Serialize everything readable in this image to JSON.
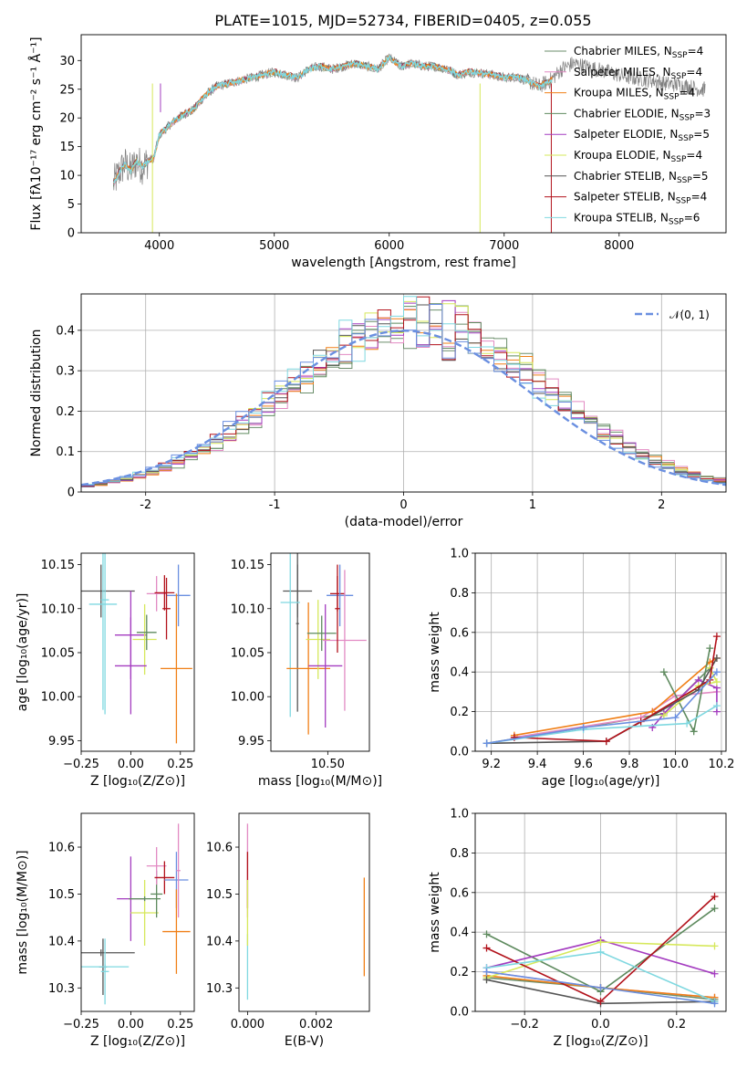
{
  "figure_title": "PLATE=1015, MJD=52734, FIBERID=0405, z=0.055",
  "palette": [
    "#6b8e6b",
    "#e28ac3",
    "#f07f16",
    "#5e8a5e",
    "#a43cc0",
    "#d6e85b",
    "#555555",
    "#b2121b",
    "#7fd8e0",
    "#6a8fe0"
  ],
  "chart_data": [
    {
      "type": "line",
      "title": "PLATE=1015, MJD=52734, FIBERID=0405, z=0.055",
      "xlabel": "wavelength [Angstrom, rest frame]",
      "ylabel": "Flux [fλ10⁻¹⁷ erg cm⁻² s⁻¹ Å⁻¹]",
      "xlim": [
        3320,
        8930
      ],
      "ylim": [
        0,
        34.5
      ],
      "xticks": [
        4000,
        5000,
        6000,
        7000,
        8000
      ],
      "yticks": [
        0,
        5,
        10,
        15,
        20,
        25,
        30
      ],
      "legend_position": "right",
      "legend": [
        {
          "label": "Chabrier MILES, N",
          "sub": "SSP",
          "tail": "=4",
          "color": "#6b8e6b"
        },
        {
          "label": "Salpeter MILES, N",
          "sub": "SSP",
          "tail": "=4",
          "color": "#e28ac3"
        },
        {
          "label": "Kroupa MILES, N",
          "sub": "SSP",
          "tail": "=4",
          "color": "#f07f16"
        },
        {
          "label": "Chabrier ELODIE, N",
          "sub": "SSP",
          "tail": "=3",
          "color": "#5e8a5e"
        },
        {
          "label": "Salpeter ELODIE, N",
          "sub": "SSP",
          "tail": "=5",
          "color": "#a43cc0"
        },
        {
          "label": "Kroupa ELODIE, N",
          "sub": "SSP",
          "tail": "=4",
          "color": "#d6e85b"
        },
        {
          "label": "Chabrier STELIB, N",
          "sub": "SSP",
          "tail": "=5",
          "color": "#555555"
        },
        {
          "label": "Salpeter STELIB, N",
          "sub": "SSP",
          "tail": "=4",
          "color": "#b2121b"
        },
        {
          "label": "Kroupa STELIB, N",
          "sub": "SSP",
          "tail": "=6",
          "color": "#7fd8e0"
        }
      ],
      "observed_color": "#808080",
      "continuum": {
        "x": [
          3600,
          3650,
          3700,
          3750,
          3800,
          3850,
          3900,
          3950,
          4000,
          4100,
          4200,
          4300,
          4400,
          4500,
          4600,
          4700,
          4800,
          4900,
          5000,
          5100,
          5200,
          5300,
          5400,
          5500,
          5600,
          5700,
          5800,
          5900,
          6000,
          6100,
          6200,
          6300,
          6400,
          6500,
          6600,
          6700,
          6800,
          6900,
          7000,
          7100,
          7200,
          7300,
          7400,
          7500,
          7600,
          7700,
          7800,
          7900,
          8000,
          8100,
          8200,
          8300,
          8400,
          8500,
          8600,
          8700
        ],
        "y": [
          8.5,
          10.5,
          12.0,
          10.8,
          12.5,
          11.5,
          12.5,
          13.0,
          17.0,
          19.0,
          20.5,
          21.5,
          24.0,
          25.5,
          26.0,
          26.5,
          27.0,
          27.5,
          28.0,
          27.5,
          27.0,
          28.5,
          29.0,
          28.5,
          29.0,
          29.5,
          29.0,
          28.5,
          30.5,
          29.0,
          29.5,
          29.0,
          29.0,
          28.5,
          27.5,
          28.0,
          27.8,
          27.5,
          27.0,
          27.2,
          26.5,
          25.5,
          26.5,
          28.5,
          29.5,
          29.0,
          28.5,
          28.0,
          27.5,
          27.0,
          26.8,
          26.5,
          26.0,
          25.8,
          25.5,
          25.0
        ]
      }
    },
    {
      "type": "step-histogram",
      "xlabel": "(data-model)/error",
      "ylabel": "Normed distribution",
      "xlim": [
        -2.5,
        2.5
      ],
      "ylim": [
        0,
        0.49
      ],
      "xticks": [
        -2,
        -1,
        0,
        1,
        2
      ],
      "yticks": [
        0.0,
        0.1,
        0.2,
        0.3,
        0.4
      ],
      "legend": "𝒩(0, 1)",
      "legend_position": "top-right",
      "normal_color": "#6a8fe0",
      "grid": true
    },
    {
      "type": "errorbar",
      "xlabel": "Z [log₁₀(Z/Z⊙)]",
      "ylabel": "age  [log₁₀(age/yr)]",
      "xlim": [
        -0.25,
        0.32
      ],
      "ylim": [
        9.938,
        10.163
      ],
      "xticks": [
        -0.25,
        0.0,
        0.25
      ],
      "xticklabels": [
        "−0.25",
        "0.00",
        "0.25"
      ],
      "yticks": [
        9.95,
        10.0,
        10.05,
        10.1,
        10.15
      ],
      "yticklabels": [
        "9.95",
        "10.00",
        "10.05",
        "10.10",
        "10.15"
      ],
      "points": [
        {
          "x": -0.15,
          "xerr": 0.17,
          "y": 10.12,
          "yerr": 0.03,
          "color": "#555555"
        },
        {
          "x": -0.14,
          "xerr": 0.07,
          "y": 10.105,
          "yerr": 0.12,
          "color": "#7fd8e0"
        },
        {
          "x": -0.13,
          "xerr": 0.02,
          "y": 10.11,
          "yerr": 0.13,
          "color": "#7fd8e0"
        },
        {
          "x": 0.0,
          "xerr": 0.08,
          "y": 10.07,
          "yerr": 0.05,
          "color": "#a43cc0"
        },
        {
          "x": 0.07,
          "xerr": 0.06,
          "y": 10.065,
          "yerr": 0.04,
          "color": "#d6e85b"
        },
        {
          "x": 0.08,
          "xerr": 0.05,
          "y": 10.073,
          "yerr": 0.02,
          "color": "#5e8a5e"
        },
        {
          "x": 0.0,
          "xerr": 0.08,
          "y": 10.035,
          "yerr": 0.055,
          "color": "#a43cc0"
        },
        {
          "x": 0.13,
          "xerr": 0.05,
          "y": 10.117,
          "yerr": 0.02,
          "color": "#e28ac3"
        },
        {
          "x": 0.17,
          "xerr": 0.05,
          "y": 10.118,
          "yerr": 0.02,
          "color": "#b2121b"
        },
        {
          "x": 0.24,
          "xerr": 0.06,
          "y": 10.115,
          "yerr": 0.035,
          "color": "#6a8fe0"
        },
        {
          "x": 0.23,
          "xerr": 0.08,
          "y": 10.032,
          "yerr": 0.085,
          "color": "#f07f16"
        },
        {
          "x": 0.18,
          "xerr": 0.02,
          "y": 10.1,
          "yerr": 0.035,
          "color": "#b2121b"
        }
      ]
    },
    {
      "type": "errorbar",
      "xlabel": "mass [log₁₀(M/M⊙)]",
      "ylabel": "",
      "xlim": [
        10.265,
        10.672
      ],
      "ylim": [
        9.938,
        10.163
      ],
      "xticks": [
        10.25,
        10.5
      ],
      "xticklabels": [
        "10.25",
        "10.50"
      ],
      "yticks": [
        9.95,
        10.0,
        10.05,
        10.1,
        10.15
      ],
      "yticklabels": [
        "9.95",
        "10.00",
        "10.05",
        "10.10",
        "10.15"
      ],
      "points": [
        {
          "x": 10.375,
          "xerr": 0.06,
          "y": 10.12,
          "yerr": 0.03,
          "color": "#555555"
        },
        {
          "x": 10.375,
          "xerr": 0.006,
          "y": 10.083,
          "yerr": 0.1,
          "color": "#555555"
        },
        {
          "x": 10.345,
          "xerr": 0.04,
          "y": 10.107,
          "yerr": 0.13,
          "color": "#7fd8e0"
        },
        {
          "x": 10.42,
          "xerr": 0.09,
          "y": 10.032,
          "yerr": 0.075,
          "color": "#f07f16"
        },
        {
          "x": 10.46,
          "xerr": 0.05,
          "y": 10.065,
          "yerr": 0.045,
          "color": "#d6e85b"
        },
        {
          "x": 10.475,
          "xerr": 0.06,
          "y": 10.072,
          "yerr": 0.02,
          "color": "#5e8a5e"
        },
        {
          "x": 10.49,
          "xerr": 0.07,
          "y": 10.035,
          "yerr": 0.07,
          "color": "#a43cc0"
        },
        {
          "x": 10.54,
          "xerr": 0.03,
          "y": 10.117,
          "yerr": 0.02,
          "color": "#b2121b"
        },
        {
          "x": 10.55,
          "xerr": 0.055,
          "y": 10.115,
          "yerr": 0.035,
          "color": "#6a8fe0"
        },
        {
          "x": 10.57,
          "xerr": 0.09,
          "y": 10.064,
          "yerr": 0.08,
          "color": "#e28ac3"
        },
        {
          "x": 10.54,
          "xerr": 0.01,
          "y": 10.1,
          "yerr": 0.05,
          "color": "#b2121b"
        }
      ]
    },
    {
      "type": "line",
      "xlabel": "age  [log₁₀(age/yr)]",
      "ylabel": "mass weight",
      "xlim": [
        9.13,
        10.22
      ],
      "ylim": [
        0,
        1
      ],
      "xticks": [
        9.2,
        9.4,
        9.6,
        9.8,
        10.0,
        10.2
      ],
      "xticklabels": [
        "9.2",
        "9.4",
        "9.6",
        "9.8",
        "10.0",
        "10.2"
      ],
      "yticks": [
        0.0,
        0.2,
        0.4,
        0.6,
        0.8,
        1.0
      ],
      "yticklabels": [
        "0.0",
        "0.2",
        "0.4",
        "0.6",
        "0.8",
        "1.0"
      ],
      "grid": true,
      "series": [
        {
          "color": "#6b8e6b",
          "x": [
            9.18,
            9.6,
            9.95,
            10.15
          ],
          "y": [
            0.04,
            0.12,
            0.19,
            0.42
          ]
        },
        {
          "color": "#e28ac3",
          "x": [
            9.3,
            9.85,
            10.0,
            10.18
          ],
          "y": [
            0.07,
            0.17,
            0.28,
            0.3
          ]
        },
        {
          "color": "#f07f16",
          "x": [
            9.3,
            9.9,
            10.15,
            10.18
          ],
          "y": [
            0.08,
            0.2,
            0.45,
            0.47
          ]
        },
        {
          "color": "#5e8a5e",
          "x": [
            9.95,
            10.08,
            10.15
          ],
          "y": [
            0.4,
            0.1,
            0.52
          ]
        },
        {
          "color": "#a43cc0",
          "x": [
            9.9,
            9.95,
            10.1,
            10.18,
            10.18
          ],
          "y": [
            0.12,
            0.19,
            0.36,
            0.32,
            0.2
          ]
        },
        {
          "color": "#d6e85b",
          "x": [
            9.95,
            10.1,
            10.18,
            10.15
          ],
          "y": [
            0.18,
            0.33,
            0.35,
            0.42
          ]
        },
        {
          "color": "#555555",
          "x": [
            9.18,
            9.7,
            10.1,
            10.18
          ],
          "y": [
            0.04,
            0.05,
            0.31,
            0.47
          ]
        },
        {
          "color": "#b2121b",
          "x": [
            9.3,
            9.7,
            9.85,
            10.15,
            10.18
          ],
          "y": [
            0.07,
            0.05,
            0.15,
            0.36,
            0.58
          ]
        },
        {
          "color": "#7fd8e0",
          "x": [
            9.18,
            9.6,
            10.05,
            10.18
          ],
          "y": [
            0.04,
            0.11,
            0.14,
            0.23
          ]
        },
        {
          "color": "#6a8fe0",
          "x": [
            9.18,
            9.6,
            10.0,
            10.18
          ],
          "y": [
            0.04,
            0.12,
            0.17,
            0.4
          ]
        }
      ]
    },
    {
      "type": "errorbar",
      "xlabel": "Z [log₁₀(Z/Z⊙)]",
      "ylabel": "mass [log₁₀(M/M⊙)]",
      "xlim": [
        -0.25,
        0.32
      ],
      "ylim": [
        10.25,
        10.672
      ],
      "xticks": [
        -0.25,
        0.0,
        0.25
      ],
      "xticklabels": [
        "−0.25",
        "0.00",
        "0.25"
      ],
      "yticks": [
        10.3,
        10.4,
        10.5,
        10.6
      ],
      "yticklabels": [
        "10.3",
        "10.4",
        "10.5",
        "10.6"
      ],
      "points": [
        {
          "x": -0.15,
          "xerr": 0.17,
          "y": 10.375,
          "yerr": 0.007,
          "color": "#555555"
        },
        {
          "x": -0.14,
          "xerr": 0.02,
          "y": 10.345,
          "yerr": 0.06,
          "color": "#555555"
        },
        {
          "x": -0.13,
          "xerr": 0.02,
          "y": 10.335,
          "yerr": 0.07,
          "color": "#7fd8e0"
        },
        {
          "x": -0.13,
          "xerr": 0.12,
          "y": 10.345,
          "yerr": 0.005,
          "color": "#7fd8e0"
        },
        {
          "x": 0.0,
          "xerr": 0.07,
          "y": 10.49,
          "yerr": 0.09,
          "color": "#a43cc0"
        },
        {
          "x": 0.07,
          "xerr": 0.07,
          "y": 10.46,
          "yerr": 0.07,
          "color": "#d6e85b"
        },
        {
          "x": 0.07,
          "xerr": 0.08,
          "y": 10.49,
          "yerr": 0.005,
          "color": "#5e8a5e"
        },
        {
          "x": 0.13,
          "xerr": 0.03,
          "y": 10.5,
          "yerr": 0.05,
          "color": "#5e8a5e"
        },
        {
          "x": 0.13,
          "xerr": 0.05,
          "y": 10.56,
          "yerr": 0.04,
          "color": "#e28ac3"
        },
        {
          "x": 0.17,
          "xerr": 0.05,
          "y": 10.535,
          "yerr": 0.035,
          "color": "#b2121b"
        },
        {
          "x": 0.23,
          "xerr": 0.06,
          "y": 10.53,
          "yerr": 0.06,
          "color": "#6a8fe0"
        },
        {
          "x": 0.23,
          "xerr": 0.07,
          "y": 10.42,
          "yerr": 0.09,
          "color": "#f07f16"
        },
        {
          "x": 0.24,
          "xerr": 0.01,
          "y": 10.55,
          "yerr": 0.1,
          "color": "#e28ac3"
        }
      ]
    },
    {
      "type": "errorbar",
      "xlabel": "E(B-V)",
      "ylabel": "",
      "xlim": [
        -0.00025,
        0.00355
      ],
      "ylim": [
        10.25,
        10.672
      ],
      "xticks": [
        0.0,
        0.002
      ],
      "xticklabels": [
        "0.000",
        "0.002"
      ],
      "yticks": [
        10.3,
        10.4,
        10.5,
        10.6
      ],
      "yticklabels": [
        "10.3",
        "10.4",
        "10.5",
        "10.6"
      ],
      "points": [
        {
          "x": 0.0,
          "xerr": 0,
          "y": 10.55,
          "yerr": 0.1,
          "color": "#e28ac3"
        },
        {
          "x": 0.0,
          "xerr": 0,
          "y": 10.53,
          "yerr": 0.06,
          "color": "#b2121b"
        },
        {
          "x": 0.0,
          "xerr": 0,
          "y": 10.345,
          "yerr": 0.07,
          "color": "#7fd8e0"
        },
        {
          "x": 0.0,
          "xerr": 0,
          "y": 10.46,
          "yerr": 0.07,
          "color": "#d6e85b"
        },
        {
          "x": 0.0034,
          "xerr": 0,
          "y": 10.43,
          "yerr": 0.105,
          "color": "#f07f16"
        }
      ]
    },
    {
      "type": "line",
      "xlabel": "Z [log₁₀(Z/Z⊙)]",
      "ylabel": "mass weight",
      "xlim": [
        -0.33,
        0.33
      ],
      "ylim": [
        0,
        1
      ],
      "xticks": [
        -0.2,
        0.0,
        0.2
      ],
      "xticklabels": [
        "−0.2",
        "0.0",
        "0.2"
      ],
      "yticks": [
        0.0,
        0.2,
        0.4,
        0.6,
        0.8,
        1.0
      ],
      "yticklabels": [
        "0.0",
        "0.2",
        "0.4",
        "0.6",
        "0.8",
        "1.0"
      ],
      "grid": true,
      "series": [
        {
          "color": "#6b8e6b",
          "x": [
            -0.3,
            0.0,
            0.3
          ],
          "y": [
            0.17,
            0.12,
            0.06
          ]
        },
        {
          "color": "#e28ac3",
          "x": [
            -0.3,
            0.0,
            0.3
          ],
          "y": [
            0.2,
            0.12,
            0.07
          ]
        },
        {
          "color": "#f07f16",
          "x": [
            -0.3,
            0.0,
            0.3
          ],
          "y": [
            0.18,
            0.12,
            0.07
          ]
        },
        {
          "color": "#5e8a5e",
          "x": [
            -0.3,
            0.0,
            0.3
          ],
          "y": [
            0.39,
            0.1,
            0.52
          ]
        },
        {
          "color": "#a43cc0",
          "x": [
            -0.3,
            0.0,
            0.3
          ],
          "y": [
            0.22,
            0.36,
            0.19
          ]
        },
        {
          "color": "#d6e85b",
          "x": [
            -0.3,
            0.0,
            0.3
          ],
          "y": [
            0.17,
            0.35,
            0.33
          ]
        },
        {
          "color": "#555555",
          "x": [
            -0.3,
            0.0,
            0.3
          ],
          "y": [
            0.16,
            0.04,
            0.05
          ]
        },
        {
          "color": "#b2121b",
          "x": [
            -0.3,
            0.0,
            0.3
          ],
          "y": [
            0.32,
            0.05,
            0.58
          ]
        },
        {
          "color": "#7fd8e0",
          "x": [
            -0.3,
            0.0,
            0.3
          ],
          "y": [
            0.22,
            0.3,
            0.05
          ]
        },
        {
          "color": "#6a8fe0",
          "x": [
            -0.3,
            0.0,
            0.3
          ],
          "y": [
            0.2,
            0.12,
            0.04
          ]
        }
      ]
    }
  ]
}
